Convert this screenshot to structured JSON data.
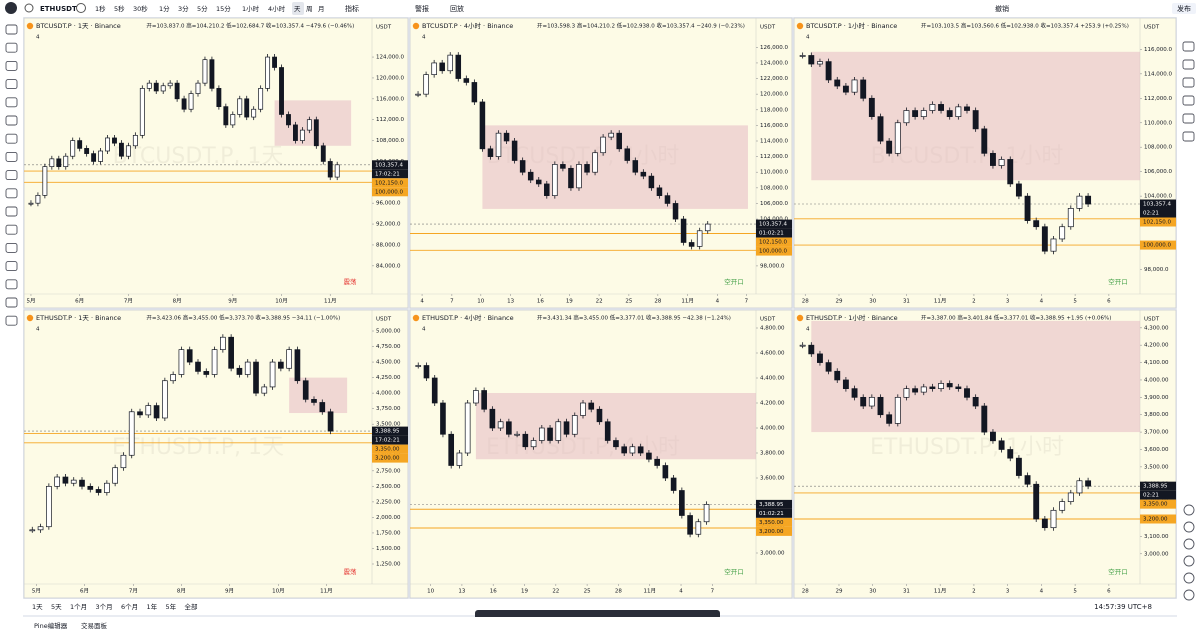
{
  "toolbar": {
    "symbol": "ETHUSDT",
    "intervals": [
      "1秒",
      "5秒",
      "30秒",
      "1分",
      "3分",
      "5分",
      "15分",
      "1小时",
      "4小时",
      "天",
      "周",
      "月"
    ],
    "indicators": "指标",
    "alert": "警报",
    "replay": "回放",
    "layout": "撤销",
    "publish": "发布"
  },
  "chart_data": [
    {
      "type": "candlestick",
      "title": "BTCUSDT.P · 1天 · Binance",
      "subtitle": "开=103,837.0 高=104,210.2 低=102,684.7 收=103,357.4 −479.6 (−0.46%)",
      "watermark": "BTCUSDT.P, 1天",
      "unit": "USDT",
      "indicator_count": 4,
      "annotation": "震荡",
      "annotation_color": "#e53935",
      "values": [
        96000,
        97500,
        103000,
        104500,
        103000,
        105000,
        108000,
        106500,
        105500,
        104000,
        106000,
        108500,
        107500,
        105000,
        107000,
        109000,
        118000,
        119000,
        117500,
        118500,
        119000,
        116000,
        114000,
        117000,
        119000,
        123500,
        118000,
        114500,
        111000,
        113000,
        116000,
        112500,
        114000,
        118000,
        124000,
        122000,
        113000,
        111000,
        108000,
        110000,
        112000,
        107000,
        104000,
        101000,
        103357.4
      ],
      "xlim": [
        -1,
        49
      ],
      "xticks": [
        {
          "value": 0,
          "label": "5月"
        },
        {
          "value": 7,
          "label": "6月"
        },
        {
          "value": 14,
          "label": "7月"
        },
        {
          "value": 21,
          "label": "8月"
        },
        {
          "value": 29,
          "label": "9月"
        },
        {
          "value": 36,
          "label": "10月"
        },
        {
          "value": 43,
          "label": "11月"
        }
      ],
      "ylim": [
        78600,
        131100
      ],
      "yticks": [
        {
          "value": 84000,
          "label": "84,000.0"
        },
        {
          "value": 88000,
          "label": "88,000.0"
        },
        {
          "value": 92000,
          "label": "92,000.0"
        },
        {
          "value": 96000,
          "label": "96,000.0"
        },
        {
          "value": 100000,
          "label": "100,000.0"
        },
        {
          "value": 104000,
          "label": "104,000.0"
        },
        {
          "value": 108000,
          "label": "108,000.0"
        },
        {
          "value": 112000,
          "label": "112,000.0"
        },
        {
          "value": 116000,
          "label": "116,000.0"
        },
        {
          "value": 120000,
          "label": "120,000.0"
        },
        {
          "value": 124000,
          "label": "124,000.0"
        }
      ],
      "zone": {
        "x": [
          35,
          46
        ],
        "y": [
          107000,
          115700
        ]
      },
      "last_price": {
        "value": 103357.4,
        "label": "103,357.4"
      },
      "countdown": "17:02:21",
      "levels": [
        {
          "value": 102150,
          "label": "102,150.0"
        },
        {
          "value": 100000,
          "label": "100,000.0"
        }
      ]
    },
    {
      "type": "candlestick",
      "title": "BTCUSDT.P · 4小时 · Binance",
      "subtitle": "开=103,598.3 高=104,210.2 低=102,938.0 收=103,357.4 −240.9 (−0.23%)",
      "watermark": "BTCUSDT.P, 4小时",
      "unit": "USDT",
      "indicator_count": 4,
      "annotation": "空开口",
      "annotation_color": "#43a047",
      "values": [
        120000,
        122500,
        124000,
        123000,
        125000,
        122000,
        121500,
        119000,
        113000,
        112000,
        115000,
        114000,
        111500,
        110000,
        109000,
        108500,
        107000,
        111000,
        110500,
        108000,
        111000,
        110000,
        112500,
        114500,
        115000,
        113000,
        111500,
        110000,
        109500,
        108000,
        107000,
        106000,
        104000,
        101000,
        100500,
        102500,
        103357.4
      ],
      "xlim": [
        -1,
        42
      ],
      "xticks": [
        {
          "value": 0.5,
          "label": "4"
        },
        {
          "value": 4.2,
          "label": "7"
        },
        {
          "value": 7.8,
          "label": "10"
        },
        {
          "value": 11.5,
          "label": "13"
        },
        {
          "value": 15.2,
          "label": "16"
        },
        {
          "value": 18.8,
          "label": "19"
        },
        {
          "value": 22.5,
          "label": "22"
        },
        {
          "value": 26.2,
          "label": "25"
        },
        {
          "value": 29.8,
          "label": "28"
        },
        {
          "value": 33.5,
          "label": "11月"
        },
        {
          "value": 37.2,
          "label": "4"
        },
        {
          "value": 40.8,
          "label": "7"
        }
      ],
      "ylim": [
        94400,
        129500
      ],
      "yticks": [
        {
          "value": 98000,
          "label": "98,000.0"
        },
        {
          "value": 100000,
          "label": "100,000.0"
        },
        {
          "value": 102000,
          "label": "102,000.0"
        },
        {
          "value": 104000,
          "label": "104,000.0"
        },
        {
          "value": 106000,
          "label": "106,000.0"
        },
        {
          "value": 108000,
          "label": "108,000.0"
        },
        {
          "value": 110000,
          "label": "110,000.0"
        },
        {
          "value": 112000,
          "label": "112,000.0"
        },
        {
          "value": 114000,
          "label": "114,000.0"
        },
        {
          "value": 116000,
          "label": "116,000.0"
        },
        {
          "value": 118000,
          "label": "118,000.0"
        },
        {
          "value": 120000,
          "label": "120,000.0"
        },
        {
          "value": 122000,
          "label": "122,000.0"
        },
        {
          "value": 124000,
          "label": "124,000.0"
        },
        {
          "value": 126000,
          "label": "126,000.0"
        }
      ],
      "zone": {
        "x": [
          8,
          41
        ],
        "y": [
          105300,
          116000
        ]
      },
      "last_price": {
        "value": 103357.4,
        "label": "103,357.4"
      },
      "countdown": "01:02:21",
      "levels": [
        {
          "value": 102150,
          "label": "102,150.0"
        },
        {
          "value": 100000,
          "label": "100,000.0"
        }
      ]
    },
    {
      "type": "candlestick",
      "title": "BTCUSDT.P · 1小时 · Binance",
      "subtitle": "开=103,103.5 高=103,560.6 低=102,938.0 收=103,357.4 +253.9 (+0.25%)",
      "watermark": "BTCUSDT.P, 1小时",
      "unit": "USDT",
      "indicator_count": 4,
      "annotation": "空开口",
      "annotation_color": "#43a047",
      "values": [
        115500,
        114800,
        115000,
        113500,
        113000,
        112500,
        113500,
        112000,
        110500,
        108500,
        107500,
        110000,
        111000,
        110500,
        111000,
        111500,
        111000,
        110500,
        111300,
        111000,
        109500,
        107500,
        106500,
        107000,
        105000,
        104000,
        102000,
        101500,
        99500,
        100500,
        101500,
        103000,
        104000,
        103357.4
      ],
      "xlim": [
        -1,
        39
      ],
      "xticks": [
        {
          "value": 0.3,
          "label": "28"
        },
        {
          "value": 4.2,
          "label": "29"
        },
        {
          "value": 8.1,
          "label": "30"
        },
        {
          "value": 12,
          "label": "31"
        },
        {
          "value": 15.9,
          "label": "11月"
        },
        {
          "value": 19.8,
          "label": "2"
        },
        {
          "value": 23.7,
          "label": "3"
        },
        {
          "value": 27.6,
          "label": "4"
        },
        {
          "value": 31.5,
          "label": "5"
        },
        {
          "value": 35.4,
          "label": "6"
        }
      ],
      "ylim": [
        96000,
        118400
      ],
      "yticks": [
        {
          "value": 98000,
          "label": "98,000.0"
        },
        {
          "value": 100000,
          "label": "100,000.0"
        },
        {
          "value": 102000,
          "label": "102,000.0"
        },
        {
          "value": 104000,
          "label": "104,000.0"
        },
        {
          "value": 106000,
          "label": "106,000.0"
        },
        {
          "value": 108000,
          "label": "108,000.0"
        },
        {
          "value": 110000,
          "label": "110,000.0"
        },
        {
          "value": 112000,
          "label": "112,000.0"
        },
        {
          "value": 114000,
          "label": "114,000.0"
        },
        {
          "value": 116000,
          "label": "116,000.0"
        }
      ],
      "zone": {
        "x": [
          1,
          39
        ],
        "y": [
          105300,
          115800
        ]
      },
      "last_price": {
        "value": 103357.4,
        "label": "103,357.4"
      },
      "countdown": "02:21",
      "levels": [
        {
          "value": 102150,
          "label": "102,150.0"
        },
        {
          "value": 100000,
          "label": "100,000.0"
        }
      ]
    },
    {
      "type": "candlestick",
      "title": "ETHUSDT.P · 1天 · Binance",
      "subtitle": "开=3,423.06 高=3,455.00 低=3,373.70 收=3,388.95 −34.11 (−1.00%)",
      "watermark": "ETHUSDT.P, 1天",
      "unit": "USDT",
      "indicator_count": 4,
      "annotation": "震荡",
      "annotation_color": "#e53935",
      "values": [
        1800,
        1850,
        2500,
        2650,
        2550,
        2600,
        2500,
        2450,
        2400,
        2550,
        2800,
        3000,
        3700,
        3650,
        3800,
        3600,
        4200,
        4300,
        4700,
        4500,
        4350,
        4300,
        4700,
        4900,
        4400,
        4300,
        4500,
        4000,
        4100,
        4500,
        4400,
        4700,
        4200,
        3900,
        3850,
        3700,
        3388.95
      ],
      "xlim": [
        -1,
        41
      ],
      "xticks": [
        {
          "value": 0.5,
          "label": "5月"
        },
        {
          "value": 6.3,
          "label": "6月"
        },
        {
          "value": 12.2,
          "label": "7月"
        },
        {
          "value": 18,
          "label": "8月"
        },
        {
          "value": 23.8,
          "label": "9月"
        },
        {
          "value": 29.7,
          "label": "10月"
        },
        {
          "value": 35.5,
          "label": "11月"
        }
      ],
      "ylim": [
        928,
        5306
      ],
      "yticks": [
        {
          "value": 1250,
          "label": "1,250.00"
        },
        {
          "value": 1500,
          "label": "1,500.00"
        },
        {
          "value": 1750,
          "label": "1,750.00"
        },
        {
          "value": 2000,
          "label": "2,000.00"
        },
        {
          "value": 2250,
          "label": "2,250.00"
        },
        {
          "value": 2500,
          "label": "2,500.00"
        },
        {
          "value": 2750,
          "label": "2,750.00"
        },
        {
          "value": 3000,
          "label": "3,000.00"
        },
        {
          "value": 3250,
          "label": "3,250.00"
        },
        {
          "value": 3500,
          "label": "3,500.00"
        },
        {
          "value": 3750,
          "label": "3,750.00"
        },
        {
          "value": 4000,
          "label": "4,000.00"
        },
        {
          "value": 4250,
          "label": "4,250.00"
        },
        {
          "value": 4500,
          "label": "4,500.00"
        },
        {
          "value": 4750,
          "label": "4,750.00"
        },
        {
          "value": 5000,
          "label": "5,000.00"
        }
      ],
      "zone": {
        "x": [
          31,
          38
        ],
        "y": [
          3680,
          4250
        ]
      },
      "last_price": {
        "value": 3388.95,
        "label": "3,388.95"
      },
      "countdown": "17:02:21",
      "levels": [
        {
          "value": 3350,
          "label": "3,350.00"
        },
        {
          "value": 3200,
          "label": "3,200.00"
        }
      ]
    },
    {
      "type": "candlestick",
      "title": "ETHUSDT.P · 4小时 · Binance",
      "subtitle": "开=3,431.34 高=3,455.00 低=3,377.01 收=3,388.95 −42.38 (−1.24%)",
      "watermark": "ETHUSDT.P, 4小时",
      "unit": "USDT",
      "indicator_count": 4,
      "annotation": "空开口",
      "annotation_color": "#43a047",
      "values": [
        4500,
        4400,
        4200,
        3950,
        3700,
        3800,
        4200,
        4300,
        4150,
        4000,
        4050,
        3950,
        3950,
        3850,
        3900,
        4000,
        3900,
        4050,
        3950,
        4100,
        4200,
        4150,
        4050,
        3900,
        3850,
        3800,
        3850,
        3800,
        3750,
        3700,
        3600,
        3500,
        3300,
        3150,
        3250,
        3388.95
      ],
      "xlim": [
        -1,
        41
      ],
      "xticks": [
        {
          "value": 1.5,
          "label": "10"
        },
        {
          "value": 5.3,
          "label": "13"
        },
        {
          "value": 9.1,
          "label": "16"
        },
        {
          "value": 12.9,
          "label": "19"
        },
        {
          "value": 16.7,
          "label": "22"
        },
        {
          "value": 20.5,
          "label": "25"
        },
        {
          "value": 24.3,
          "label": "28"
        },
        {
          "value": 28.1,
          "label": "11月"
        },
        {
          "value": 31.9,
          "label": "4"
        },
        {
          "value": 35.7,
          "label": "7"
        }
      ],
      "ylim": [
        2752,
        4928
      ],
      "yticks": [
        {
          "value": 3000,
          "label": "3,000.00"
        },
        {
          "value": 3200,
          "label": "3,200.00"
        },
        {
          "value": 3400,
          "label": "3,400.00"
        },
        {
          "value": 3600,
          "label": "3,600.00"
        },
        {
          "value": 3800,
          "label": "3,800.00"
        },
        {
          "value": 4000,
          "label": "4,000.00"
        },
        {
          "value": 4200,
          "label": "4,200.00"
        },
        {
          "value": 4400,
          "label": "4,400.00"
        },
        {
          "value": 4600,
          "label": "4,600.00"
        },
        {
          "value": 4800,
          "label": "4,800.00"
        }
      ],
      "zone": {
        "x": [
          7,
          41
        ],
        "y": [
          3750,
          4280
        ]
      },
      "last_price": {
        "value": 3388.95,
        "label": "3,388.95"
      },
      "countdown": "01:02:21",
      "levels": [
        {
          "value": 3350,
          "label": "3,350.00"
        },
        {
          "value": 3200,
          "label": "3,200.00"
        }
      ]
    },
    {
      "type": "candlestick",
      "title": "ETHUSDT.P · 1小时 · Binance",
      "subtitle": "开=3,387.00 高=3,401.84 低=3,377.01 收=3,388.95 +1.95 (+0.06%)",
      "watermark": "ETHUSDT.P, 1小时",
      "unit": "USDT",
      "indicator_count": 4,
      "annotation": "空开口",
      "annotation_color": "#43a047",
      "values": [
        4200,
        4150,
        4100,
        4050,
        4000,
        3950,
        3900,
        3850,
        3900,
        3800,
        3750,
        3900,
        3950,
        3930,
        3960,
        3950,
        3980,
        3960,
        3950,
        3900,
        3850,
        3700,
        3650,
        3600,
        3550,
        3450,
        3400,
        3200,
        3150,
        3250,
        3300,
        3350,
        3420,
        3388.95
      ],
      "xlim": [
        -1,
        39
      ],
      "xticks": [
        {
          "value": 0.3,
          "label": "28"
        },
        {
          "value": 4.2,
          "label": "29"
        },
        {
          "value": 8.1,
          "label": "30"
        },
        {
          "value": 12,
          "label": "31"
        },
        {
          "value": 15.9,
          "label": "11月"
        },
        {
          "value": 19.8,
          "label": "2"
        },
        {
          "value": 23.7,
          "label": "3"
        },
        {
          "value": 27.6,
          "label": "4"
        },
        {
          "value": 31.5,
          "label": "5"
        },
        {
          "value": 35.4,
          "label": "6"
        }
      ],
      "ylim": [
        2826,
        4391
      ],
      "yticks": [
        {
          "value": 3000,
          "label": "3,000.00"
        },
        {
          "value": 3100,
          "label": "3,100.00"
        },
        {
          "value": 3200,
          "label": "3,200.00"
        },
        {
          "value": 3300,
          "label": "3,300.00"
        },
        {
          "value": 3400,
          "label": "3,400.00"
        },
        {
          "value": 3500,
          "label": "3,500.00"
        },
        {
          "value": 3600,
          "label": "3,600.00"
        },
        {
          "value": 3700,
          "label": "3,700.00"
        },
        {
          "value": 3800,
          "label": "3,800.00"
        },
        {
          "value": 3900,
          "label": "3,900.00"
        },
        {
          "value": 4000,
          "label": "4,000.00"
        },
        {
          "value": 4100,
          "label": "4,100.00"
        },
        {
          "value": 4200,
          "label": "4,200.00"
        },
        {
          "value": 4300,
          "label": "4,300.00"
        }
      ],
      "zone": {
        "x": [
          1,
          39
        ],
        "y": [
          3700,
          4340
        ]
      },
      "last_price": {
        "value": 3388.95,
        "label": "3,388.95"
      },
      "countdown": "02:21",
      "levels": [
        {
          "value": 3350,
          "label": "3,350.00"
        },
        {
          "value": 3200,
          "label": "3,200.00"
        }
      ]
    }
  ],
  "range_bar": {
    "ranges": [
      "1天",
      "5天",
      "1个月",
      "3个月",
      "6个月",
      "1年",
      "5年",
      "全部"
    ],
    "time": "14:57:39 UTC+8"
  },
  "footer": {
    "tabs": [
      "Pine编辑器",
      "交易面板"
    ]
  }
}
